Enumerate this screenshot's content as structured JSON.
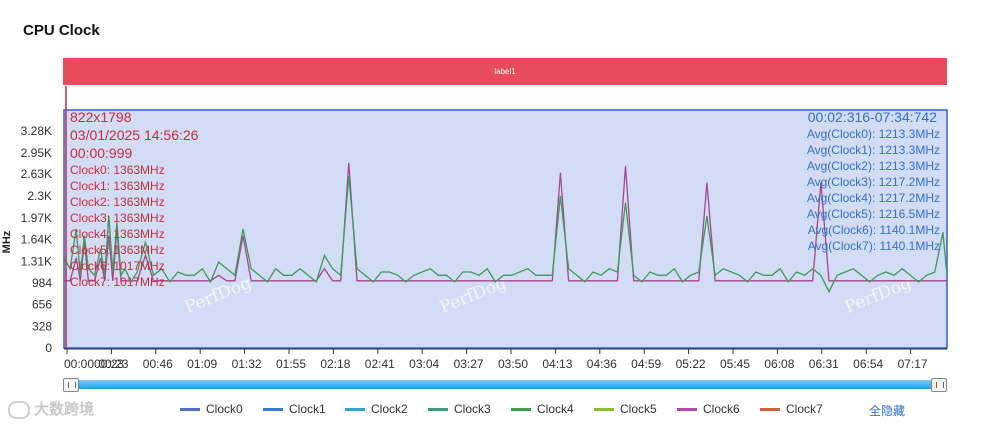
{
  "title": "CPU Clock",
  "band_label": "label1",
  "y_axis_label": "MHz",
  "colors": {
    "band": "#e84c5c",
    "plot_bg": "#d3dcf5",
    "plot_border": "#2e63c9",
    "info_left": "#c62d3a",
    "info_right": "#2f6fd8",
    "series_green": "#3d9a5b",
    "series_magenta": "#a8448d"
  },
  "info_left": {
    "resolution": "822x1798",
    "datetime": "03/01/2025 14:56:26",
    "cursor_time": "00:00:999",
    "lines": [
      "Clock0: 1363MHz",
      "Clock1: 1363MHz",
      "Clock2: 1363MHz",
      "Clock3: 1363MHz",
      "Clock4: 1363MHz",
      "Clock5: 1363MHz",
      "Clock6: 1017MHz",
      "Clock7: 1017MHz"
    ]
  },
  "info_right": {
    "range": "00:02:316-07:34:742",
    "lines": [
      "Avg(Clock0): 1213.3MHz",
      "Avg(Clock1): 1213.3MHz",
      "Avg(Clock2): 1213.3MHz",
      "Avg(Clock3): 1217.2MHz",
      "Avg(Clock4): 1217.2MHz",
      "Avg(Clock5): 1216.5MHz",
      "Avg(Clock6): 1140.1MHz",
      "Avg(Clock7): 1140.1MHz"
    ]
  },
  "watermark": "PerfDog",
  "brand_watermark": "大数跨境",
  "hide_all_label": "全隐藏",
  "legend": [
    {
      "name": "Clock0",
      "color": "#5470c6"
    },
    {
      "name": "Clock1",
      "color": "#3a7bd5"
    },
    {
      "name": "Clock2",
      "color": "#33a7c7"
    },
    {
      "name": "Clock3",
      "color": "#3d9a7a"
    },
    {
      "name": "Clock4",
      "color": "#3f9e4f"
    },
    {
      "name": "Clock5",
      "color": "#8cbf2f"
    },
    {
      "name": "Clock6",
      "color": "#b04aa6"
    },
    {
      "name": "Clock7",
      "color": "#d1603d"
    }
  ],
  "chart_data": {
    "type": "line",
    "title": "CPU Clock",
    "ylabel": "MHz",
    "xlabel": "",
    "x_range": [
      "00:00",
      "07:34"
    ],
    "y_range": [
      0,
      3600
    ],
    "y_ticks": [
      "0",
      "328",
      "656",
      "984",
      "1.31K",
      "1.64K",
      "1.97K",
      "2.3K",
      "2.63K",
      "2.95K",
      "3.28K"
    ],
    "x_ticks": [
      "00:00",
      "00:23",
      "00:46",
      "01:09",
      "01:32",
      "01:55",
      "02:18",
      "02:41",
      "03:04",
      "03:27",
      "03:50",
      "04:13",
      "04:36",
      "04:59",
      "05:22",
      "05:45",
      "06:08",
      "06:31",
      "06:54",
      "07:17"
    ],
    "grid": false,
    "series": [
      {
        "name": "Clock6",
        "color": "#a8448d",
        "x": [
          0,
          3,
          6,
          8,
          10,
          12,
          15,
          18,
          20,
          22,
          24,
          26,
          28,
          30,
          33,
          36,
          40,
          44,
          48,
          52,
          56,
          60,
          64,
          68,
          72,
          76,
          80,
          84,
          88,
          92,
          96,
          100,
          104,
          108,
          112,
          116,
          120,
          124,
          128,
          132,
          136,
          140,
          144,
          148,
          152,
          156,
          160,
          164,
          168,
          172,
          176,
          180,
          184,
          188,
          192,
          196,
          200,
          204,
          208,
          212,
          216,
          220,
          224,
          228,
          232,
          236,
          240,
          244,
          248,
          252,
          256,
          260,
          264,
          268,
          272,
          276,
          280,
          284,
          288,
          292,
          296,
          300,
          304,
          308,
          312,
          316,
          320,
          324,
          328,
          332,
          336,
          340,
          344,
          348,
          352,
          356,
          360,
          364,
          368,
          372,
          376,
          380,
          384,
          388,
          392,
          396,
          400,
          404,
          408,
          412,
          416,
          420,
          424,
          428,
          432,
          434
        ],
        "y": [
          1017,
          1017,
          1363,
          1017,
          1600,
          1017,
          1017,
          1363,
          1017,
          1700,
          1017,
          1800,
          1017,
          1017,
          1017,
          1017,
          1400,
          1017,
          1017,
          1017,
          1017,
          1017,
          1017,
          1017,
          1017,
          1100,
          1017,
          1017,
          1700,
          1017,
          1017,
          1017,
          1017,
          1017,
          1017,
          1017,
          1017,
          1017,
          1200,
          1017,
          1017,
          2800,
          1017,
          1017,
          1017,
          1017,
          1017,
          1017,
          1017,
          1017,
          1017,
          1017,
          1017,
          1017,
          1017,
          1017,
          1017,
          1017,
          1017,
          1017,
          1017,
          1017,
          1017,
          1017,
          1017,
          1017,
          1017,
          2650,
          1017,
          1017,
          1017,
          1017,
          1017,
          1017,
          1017,
          2750,
          1017,
          1017,
          1017,
          1017,
          1017,
          1017,
          1017,
          1017,
          1017,
          2500,
          1017,
          1017,
          1017,
          1017,
          1017,
          1017,
          1017,
          1017,
          1017,
          1017,
          1017,
          1017,
          1017,
          2500,
          1017,
          1017,
          1017,
          1017,
          1017,
          1017,
          1017,
          1017,
          1017,
          1017,
          1017,
          1017,
          1017,
          1017,
          1017,
          1017
        ]
      },
      {
        "name": "Clock4",
        "color": "#3d9a5b",
        "x": [
          0,
          3,
          6,
          8,
          10,
          12,
          15,
          18,
          20,
          22,
          24,
          26,
          28,
          30,
          33,
          36,
          40,
          44,
          48,
          52,
          56,
          60,
          64,
          68,
          72,
          76,
          80,
          84,
          88,
          92,
          96,
          100,
          104,
          108,
          112,
          116,
          120,
          124,
          128,
          132,
          136,
          140,
          144,
          148,
          152,
          156,
          160,
          164,
          168,
          172,
          176,
          180,
          184,
          188,
          192,
          196,
          200,
          204,
          208,
          212,
          216,
          220,
          224,
          228,
          232,
          236,
          240,
          244,
          248,
          252,
          256,
          260,
          264,
          268,
          272,
          276,
          280,
          284,
          288,
          292,
          296,
          300,
          304,
          308,
          312,
          316,
          320,
          324,
          328,
          332,
          336,
          340,
          344,
          348,
          352,
          356,
          360,
          364,
          368,
          372,
          376,
          380,
          384,
          388,
          392,
          396,
          400,
          404,
          408,
          412,
          416,
          420,
          424,
          428,
          432,
          434
        ],
        "y": [
          1363,
          1200,
          1800,
          1100,
          1700,
          1200,
          1100,
          1500,
          1100,
          2000,
          1150,
          1900,
          1100,
          1200,
          1000,
          1150,
          1600,
          1100,
          1200,
          1000,
          1150,
          1100,
          1100,
          1200,
          1000,
          1300,
          1200,
          1100,
          1800,
          1200,
          1100,
          1000,
          1200,
          1100,
          1100,
          1200,
          1100,
          1000,
          1400,
          1200,
          1100,
          2600,
          1200,
          1100,
          1000,
          1150,
          1150,
          1100,
          1000,
          1100,
          1150,
          1200,
          1100,
          1100,
          1000,
          1150,
          1150,
          1100,
          1200,
          1000,
          1100,
          1100,
          1150,
          1200,
          1100,
          1100,
          1100,
          2300,
          1200,
          1100,
          1000,
          1150,
          1100,
          1200,
          1150,
          2200,
          1100,
          1000,
          1150,
          1100,
          1100,
          1200,
          1000,
          1100,
          1150,
          2000,
          1100,
          1200,
          1150,
          1100,
          1000,
          1150,
          1100,
          1100,
          1200,
          1000,
          1150,
          1100,
          1200,
          1100,
          850,
          1100,
          1150,
          1200,
          1100,
          1000,
          1100,
          1150,
          1100,
          1200,
          1100,
          1000,
          1100,
          1150,
          1750,
          1100
        ]
      }
    ]
  }
}
